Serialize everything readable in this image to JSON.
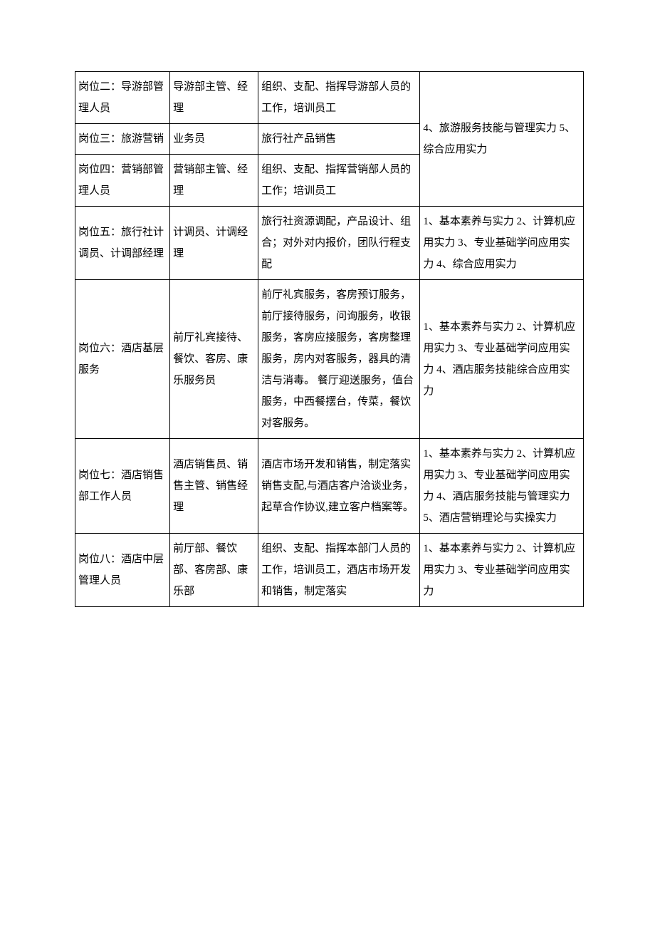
{
  "table": {
    "rows": [
      {
        "col1": "岗位二：导游部管理人员",
        "col2": "导游部主管、经理",
        "col3": "组织、支配、指挥导游部人员的工作，培训员工",
        "col4": "4、旅游服务技能与管理实力\n5、综合应用实力",
        "col4_rowspan": 3
      },
      {
        "col1": "岗位三：旅游营销",
        "col2": "业务员",
        "col3": "旅行社产品销售"
      },
      {
        "col1": "岗位四：营销部管理人员",
        "col2": "营销部主管、经理",
        "col3": "组织、支配、指挥营销部人员的工作；培训员工"
      },
      {
        "col1": "岗位五：旅行社计调员、计调部经理",
        "col2": "计调员、计调经理",
        "col3": "旅行社资源调配，产品设计、组合；对外对内报价，团队行程支配",
        "col4": "1、基本素养与实力\n2、计算机应用实力\n3、专业基础学问应用实力\n4、综合应用实力"
      },
      {
        "col1": "岗位六：酒店基层服务",
        "col2": "前厅礼宾接待、餐饮、客房、康乐服务员",
        "col3": "前厅礼宾服务，客房预订服务，前厅接待服务，问询服务，收银服务，客房应接服务，客房整理服务，房内对客服务，器具的清洁与消毒。\n餐厅迎送服务，值台服务，中西餐摆台，传菜，餐饮对客服务。",
        "col4": "1、基本素养与实力\n\n2、计算机应用实力\n\n3、专业基础学问应用实力\n\n4、酒店服务技能综合应用实力"
      },
      {
        "col1": "岗位七：酒店销售部工作人员",
        "col2": "酒店销售员、销售主管、销售经理",
        "col3": "酒店市场开发和销售，制定落实销售支配,与酒店客户洽谈业务，起草合作协议,建立客户档案等。",
        "col4": "1、基本素养与实力\n\n2、计算机应用实力\n\n3、专业基础学问应用实力\n\n4、酒店服务技能与管理实力\n\n5、酒店营销理论与实操实力"
      },
      {
        "col1": "岗位八：酒店中层管理人员",
        "col2": "前厅部、餐饮部、客房部、康乐部",
        "col3": "组织、支配、指挥本部门人员的工作，培训员工，酒店市场开发和销售，制定落实",
        "col4": "1、基本素养与实力\n2、计算机应用实力\n3、专业基础学问应用实力"
      }
    ]
  }
}
